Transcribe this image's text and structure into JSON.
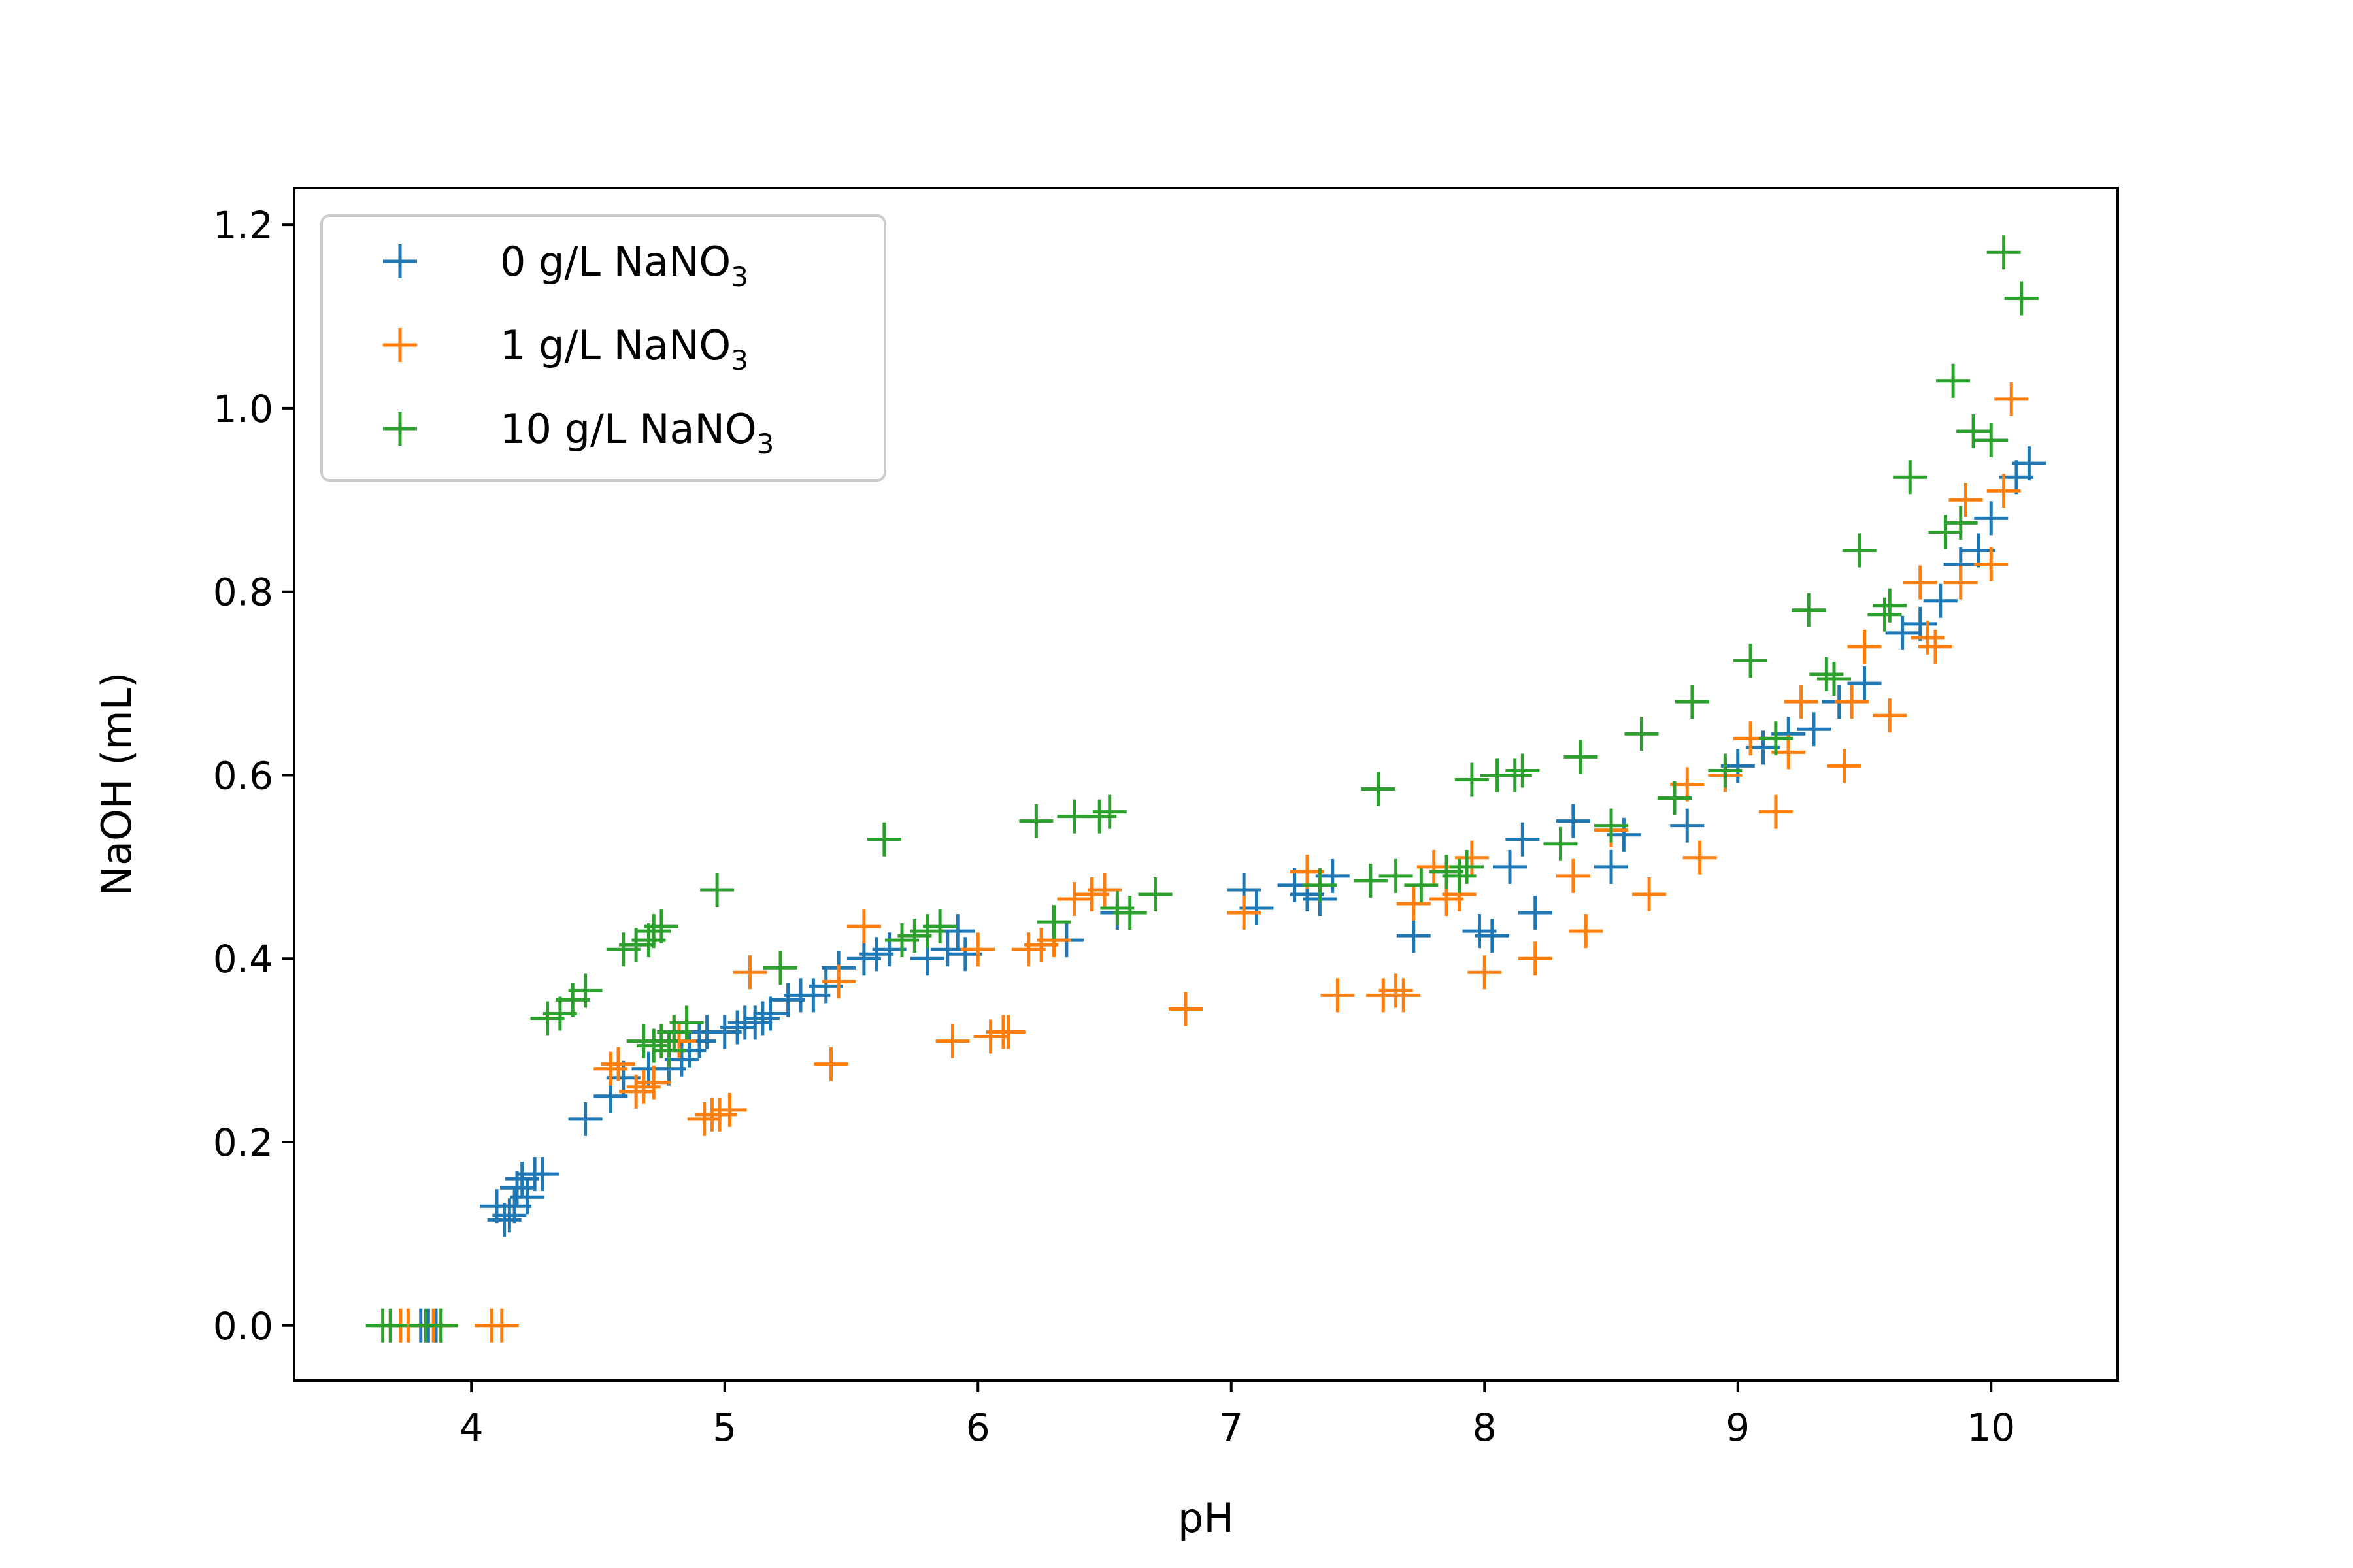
{
  "chart_data": {
    "type": "scatter",
    "marker": "+",
    "xlabel": "pH",
    "ylabel": "NaOH (mL)",
    "xlim": [
      3.3,
      10.5
    ],
    "ylim": [
      -0.06,
      1.24
    ],
    "xticks": [
      4,
      5,
      6,
      7,
      8,
      9,
      10
    ],
    "yticks": [
      0.0,
      0.2,
      0.4,
      0.6,
      0.8,
      1.0,
      1.2
    ],
    "xtick_labels": [
      "4",
      "5",
      "6",
      "7",
      "8",
      "9",
      "10"
    ],
    "ytick_labels": [
      "0.0",
      "0.2",
      "0.4",
      "0.6",
      "0.8",
      "1.0",
      "1.2"
    ],
    "grid": false,
    "legend_position": "top-left",
    "series": [
      {
        "name": "0 g/L NaNO3",
        "legend_main": "0 g/L NaNO",
        "legend_sub": "3",
        "color": "#1f77b4",
        "points": [
          [
            3.8,
            0.0
          ],
          [
            3.83,
            0.0
          ],
          [
            3.86,
            0.0
          ],
          [
            4.1,
            0.13
          ],
          [
            4.13,
            0.115
          ],
          [
            4.15,
            0.12
          ],
          [
            4.17,
            0.13
          ],
          [
            4.18,
            0.15
          ],
          [
            4.2,
            0.16
          ],
          [
            4.22,
            0.14
          ],
          [
            4.25,
            0.165
          ],
          [
            4.28,
            0.165
          ],
          [
            4.45,
            0.225
          ],
          [
            4.55,
            0.25
          ],
          [
            4.6,
            0.27
          ],
          [
            4.7,
            0.28
          ],
          [
            4.78,
            0.28
          ],
          [
            4.83,
            0.29
          ],
          [
            4.86,
            0.3
          ],
          [
            4.9,
            0.31
          ],
          [
            4.93,
            0.32
          ],
          [
            5.0,
            0.32
          ],
          [
            5.05,
            0.325
          ],
          [
            5.08,
            0.33
          ],
          [
            5.12,
            0.33
          ],
          [
            5.15,
            0.335
          ],
          [
            5.18,
            0.34
          ],
          [
            5.25,
            0.355
          ],
          [
            5.3,
            0.36
          ],
          [
            5.35,
            0.36
          ],
          [
            5.4,
            0.37
          ],
          [
            5.45,
            0.39
          ],
          [
            5.55,
            0.4
          ],
          [
            5.6,
            0.405
          ],
          [
            5.65,
            0.41
          ],
          [
            5.8,
            0.4
          ],
          [
            5.88,
            0.41
          ],
          [
            5.92,
            0.43
          ],
          [
            5.95,
            0.405
          ],
          [
            6.35,
            0.42
          ],
          [
            6.45,
            0.47
          ],
          [
            6.55,
            0.45
          ],
          [
            7.05,
            0.475
          ],
          [
            7.1,
            0.455
          ],
          [
            7.25,
            0.48
          ],
          [
            7.3,
            0.47
          ],
          [
            7.35,
            0.465
          ],
          [
            7.4,
            0.49
          ],
          [
            7.72,
            0.425
          ],
          [
            7.98,
            0.43
          ],
          [
            8.03,
            0.425
          ],
          [
            8.1,
            0.5
          ],
          [
            8.15,
            0.53
          ],
          [
            8.2,
            0.45
          ],
          [
            8.35,
            0.55
          ],
          [
            8.5,
            0.5
          ],
          [
            8.55,
            0.535
          ],
          [
            8.75,
            0.575
          ],
          [
            8.8,
            0.545
          ],
          [
            8.95,
            0.6
          ],
          [
            9.0,
            0.61
          ],
          [
            9.1,
            0.63
          ],
          [
            9.2,
            0.645
          ],
          [
            9.3,
            0.65
          ],
          [
            9.4,
            0.68
          ],
          [
            9.5,
            0.7
          ],
          [
            9.65,
            0.755
          ],
          [
            9.72,
            0.765
          ],
          [
            9.8,
            0.79
          ],
          [
            9.88,
            0.83
          ],
          [
            9.95,
            0.845
          ],
          [
            10.0,
            0.88
          ],
          [
            10.1,
            0.925
          ],
          [
            10.15,
            0.94
          ]
        ]
      },
      {
        "name": "1 g/L NaNO3",
        "legend_main": "1 g/L NaNO",
        "legend_sub": "3",
        "color": "#ff7f0e",
        "points": [
          [
            3.72,
            0.0
          ],
          [
            3.75,
            0.0
          ],
          [
            3.85,
            0.0
          ],
          [
            3.88,
            0.0
          ],
          [
            4.08,
            0.0
          ],
          [
            4.12,
            0.0
          ],
          [
            4.55,
            0.28
          ],
          [
            4.58,
            0.285
          ],
          [
            4.65,
            0.255
          ],
          [
            4.68,
            0.26
          ],
          [
            4.72,
            0.265
          ],
          [
            4.75,
            0.31
          ],
          [
            4.8,
            0.32
          ],
          [
            4.82,
            0.31
          ],
          [
            4.85,
            0.33
          ],
          [
            4.92,
            0.225
          ],
          [
            4.95,
            0.23
          ],
          [
            4.98,
            0.23
          ],
          [
            5.02,
            0.235
          ],
          [
            5.1,
            0.385
          ],
          [
            5.42,
            0.285
          ],
          [
            5.45,
            0.375
          ],
          [
            5.55,
            0.435
          ],
          [
            5.9,
            0.31
          ],
          [
            6.0,
            0.41
          ],
          [
            6.05,
            0.315
          ],
          [
            6.1,
            0.32
          ],
          [
            6.12,
            0.32
          ],
          [
            6.2,
            0.41
          ],
          [
            6.25,
            0.415
          ],
          [
            6.3,
            0.42
          ],
          [
            6.38,
            0.465
          ],
          [
            6.45,
            0.47
          ],
          [
            6.5,
            0.475
          ],
          [
            6.82,
            0.345
          ],
          [
            7.05,
            0.45
          ],
          [
            7.3,
            0.495
          ],
          [
            7.42,
            0.36
          ],
          [
            7.6,
            0.36
          ],
          [
            7.65,
            0.365
          ],
          [
            7.68,
            0.36
          ],
          [
            7.72,
            0.46
          ],
          [
            7.8,
            0.5
          ],
          [
            7.85,
            0.465
          ],
          [
            7.9,
            0.47
          ],
          [
            7.95,
            0.51
          ],
          [
            8.0,
            0.385
          ],
          [
            8.2,
            0.4
          ],
          [
            8.35,
            0.49
          ],
          [
            8.4,
            0.43
          ],
          [
            8.5,
            0.54
          ],
          [
            8.65,
            0.47
          ],
          [
            8.8,
            0.59
          ],
          [
            8.85,
            0.51
          ],
          [
            8.95,
            0.6
          ],
          [
            9.05,
            0.64
          ],
          [
            9.15,
            0.56
          ],
          [
            9.2,
            0.625
          ],
          [
            9.25,
            0.68
          ],
          [
            9.42,
            0.61
          ],
          [
            9.45,
            0.68
          ],
          [
            9.5,
            0.74
          ],
          [
            9.6,
            0.665
          ],
          [
            9.72,
            0.81
          ],
          [
            9.75,
            0.75
          ],
          [
            9.78,
            0.74
          ],
          [
            9.88,
            0.81
          ],
          [
            9.9,
            0.9
          ],
          [
            10.0,
            0.83
          ],
          [
            10.05,
            0.91
          ],
          [
            10.08,
            1.01
          ]
        ]
      },
      {
        "name": "10 g/L NaNO3",
        "legend_main": "10 g/L NaNO",
        "legend_sub": "3",
        "color": "#2ca02c",
        "points": [
          [
            3.65,
            0.0
          ],
          [
            3.68,
            0.0
          ],
          [
            3.82,
            0.0
          ],
          [
            3.88,
            0.0
          ],
          [
            4.3,
            0.335
          ],
          [
            4.35,
            0.34
          ],
          [
            4.4,
            0.355
          ],
          [
            4.45,
            0.365
          ],
          [
            4.6,
            0.41
          ],
          [
            4.65,
            0.415
          ],
          [
            4.7,
            0.42
          ],
          [
            4.72,
            0.43
          ],
          [
            4.75,
            0.435
          ],
          [
            4.68,
            0.31
          ],
          [
            4.72,
            0.305
          ],
          [
            4.75,
            0.31
          ],
          [
            4.78,
            0.3
          ],
          [
            4.8,
            0.32
          ],
          [
            4.85,
            0.33
          ],
          [
            4.97,
            0.475
          ],
          [
            5.22,
            0.39
          ],
          [
            5.63,
            0.53
          ],
          [
            5.7,
            0.42
          ],
          [
            5.75,
            0.425
          ],
          [
            5.8,
            0.43
          ],
          [
            5.85,
            0.435
          ],
          [
            6.23,
            0.55
          ],
          [
            6.3,
            0.44
          ],
          [
            6.38,
            0.555
          ],
          [
            6.48,
            0.555
          ],
          [
            6.52,
            0.56
          ],
          [
            6.55,
            0.455
          ],
          [
            6.6,
            0.45
          ],
          [
            6.7,
            0.47
          ],
          [
            7.35,
            0.48
          ],
          [
            7.55,
            0.485
          ],
          [
            7.58,
            0.585
          ],
          [
            7.65,
            0.49
          ],
          [
            7.75,
            0.48
          ],
          [
            7.85,
            0.495
          ],
          [
            7.9,
            0.49
          ],
          [
            7.93,
            0.5
          ],
          [
            7.95,
            0.595
          ],
          [
            8.05,
            0.6
          ],
          [
            8.12,
            0.6
          ],
          [
            8.15,
            0.605
          ],
          [
            8.3,
            0.525
          ],
          [
            8.38,
            0.62
          ],
          [
            8.5,
            0.545
          ],
          [
            8.62,
            0.645
          ],
          [
            8.75,
            0.575
          ],
          [
            8.82,
            0.68
          ],
          [
            8.95,
            0.605
          ],
          [
            9.05,
            0.725
          ],
          [
            9.15,
            0.64
          ],
          [
            9.28,
            0.78
          ],
          [
            9.35,
            0.71
          ],
          [
            9.38,
            0.705
          ],
          [
            9.48,
            0.845
          ],
          [
            9.58,
            0.775
          ],
          [
            9.6,
            0.785
          ],
          [
            9.68,
            0.925
          ],
          [
            9.82,
            0.865
          ],
          [
            9.85,
            1.03
          ],
          [
            9.88,
            0.875
          ],
          [
            9.93,
            0.975
          ],
          [
            10.0,
            0.965
          ],
          [
            10.05,
            1.17
          ],
          [
            10.12,
            1.12
          ]
        ]
      }
    ]
  }
}
